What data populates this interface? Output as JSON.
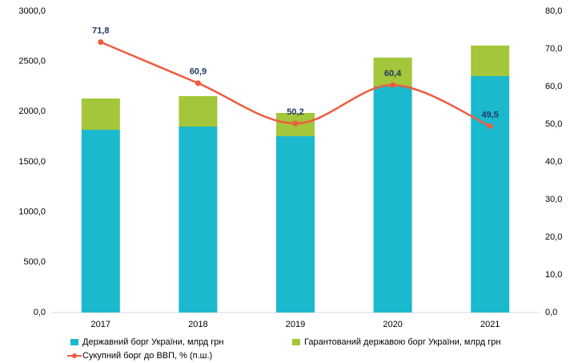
{
  "chart_data": {
    "type": "bar_line",
    "categories": [
      "2017",
      "2018",
      "2019",
      "2020",
      "2021"
    ],
    "series": [
      {
        "name": "Державний борг України,  млрд грн",
        "color": "#1bb9cd",
        "values": [
          1819,
          1851,
          1756,
          2250,
          2354
        ]
      },
      {
        "name": "Гарантований державою борг України,  млрд грн",
        "color": "#a3c63a",
        "values": [
          312,
          304,
          231,
          288,
          304
        ]
      },
      {
        "name": "Сукупний борг до ВВП, % (п.ш.)",
        "color": "#ef5b3f",
        "axis": "y2",
        "values": [
          71.8,
          60.9,
          50.2,
          60.4,
          49.5
        ],
        "value_labels": [
          "71,8",
          "60,9",
          "50,2",
          "60,4",
          "49,5"
        ]
      }
    ],
    "ylim": [
      0,
      3000
    ],
    "yticks": [
      {
        "value": 0,
        "label": "0,0"
      },
      {
        "value": 500,
        "label": "500,0"
      },
      {
        "value": 1000,
        "label": "1000,0"
      },
      {
        "value": 1500,
        "label": "1500,0"
      },
      {
        "value": 2000,
        "label": "2000,0"
      },
      {
        "value": 2500,
        "label": "2500,0"
      },
      {
        "value": 3000,
        "label": "3000,0"
      }
    ],
    "y2lim": [
      0,
      80
    ],
    "y2ticks": [
      {
        "value": 0,
        "label": "0,0"
      },
      {
        "value": 10,
        "label": "10,0"
      },
      {
        "value": 20,
        "label": "20,0"
      },
      {
        "value": 30,
        "label": "30,0"
      },
      {
        "value": 40,
        "label": "40,0"
      },
      {
        "value": 50,
        "label": "50,0"
      },
      {
        "value": 60,
        "label": "60,0"
      },
      {
        "value": 70,
        "label": "70,0"
      },
      {
        "value": 80,
        "label": "80,0"
      }
    ]
  }
}
